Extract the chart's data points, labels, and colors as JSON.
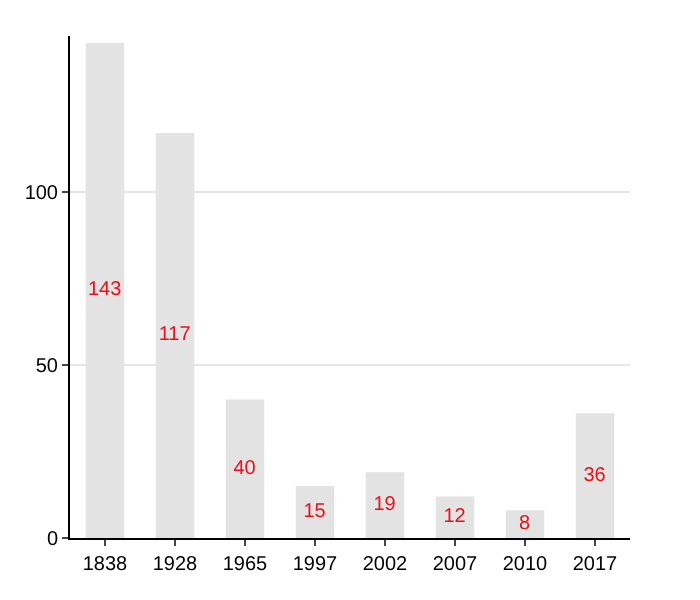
{
  "chart_data": {
    "type": "bar",
    "categories": [
      "1838",
      "1928",
      "1965",
      "1997",
      "2002",
      "2007",
      "2010",
      "2017"
    ],
    "values": [
      143,
      117,
      40,
      15,
      19,
      12,
      8,
      36
    ],
    "color": "#e3e3e3",
    "data_labels": true,
    "ylim": [
      0,
      145
    ],
    "yticks": [
      0,
      50,
      100
    ],
    "grid": "y"
  }
}
